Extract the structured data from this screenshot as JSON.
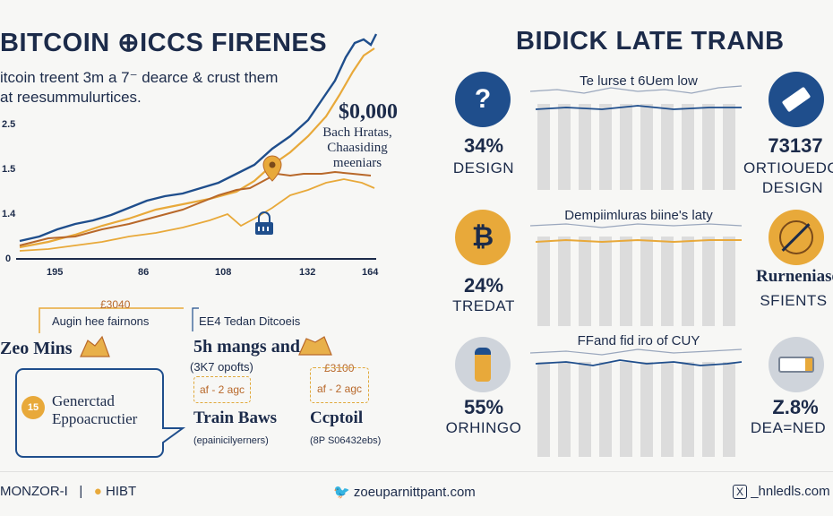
{
  "left": {
    "title": "BITCOIN ⊕ICCS FIRENES",
    "intro_line1": "itcoin treent 3m a 7⁻ dearce & crust them",
    "intro_line2": "at reesummulurtices.",
    "y_ticks": [
      "2.5",
      "1.5",
      "1.4",
      "0"
    ],
    "x_ticks": [
      "195",
      "86",
      "108",
      "132",
      "164"
    ],
    "annotation_value": "$0,000",
    "annotation_text": [
      "Bach Hratas,",
      "Chaasiding",
      "meeniars"
    ],
    "chart_colors": {
      "navy": "#1f4e8c",
      "gold": "#e8a93a",
      "brown": "#b8682a"
    }
  },
  "lower_left": {
    "box1_value": "£3040",
    "box1_text": "Augin hee fairnons",
    "box1_title": "Zeo Mins",
    "box2_title": "Generctad",
    "box2_sub": "Eppoacructier",
    "box2_coin": "15",
    "mid_top": "EE4 Tedan Ditcoeis",
    "mid_title": "5h mangs and",
    "mid_sub": "(3K7 opofts)",
    "tag1": "af - 2 agc",
    "tag2_value": "£3100",
    "tag2": "af - 2 agc",
    "bottom_left_title": "Train Baws",
    "bottom_left_sub": "(epainicilyerners)",
    "bottom_right_title": "Ccptoil",
    "bottom_right_sub": "(8P S06432ebs)"
  },
  "right": {
    "title": "BIDICK LATE TRANB",
    "rows": [
      {
        "left_pct": "34%",
        "left_label": "DESIGN",
        "left_icon": "question-icon",
        "mini_title": "Te lurse t 6Uem low",
        "right_value": "73137",
        "right_label": "ORTIOUEDC",
        "right_label2": "DESIGN",
        "right_icon": "ticket-icon"
      },
      {
        "left_pct": "24%",
        "left_label": "TREDAT",
        "left_icon": "bitcoin-icon",
        "mini_title": "Dempiimluras biine's laty",
        "right_value": "Rurneniase",
        "right_label": "SFIENTS",
        "right_label2": "",
        "right_icon": "compass-icon"
      },
      {
        "left_pct": "55%",
        "left_label": "ORHINGO",
        "left_icon": "bottle-icon",
        "mini_title": "FFand fid iro of CUY",
        "right_value": "Z.8%",
        "right_label": "DEA=NED",
        "right_label2": "",
        "right_icon": "battery-icon"
      }
    ]
  },
  "footer": {
    "left_a": "MONZOR-I",
    "left_sep": "|",
    "left_b": "HIBT",
    "center": "zoeuparnittpant.com",
    "right": "_hnledls.com"
  }
}
